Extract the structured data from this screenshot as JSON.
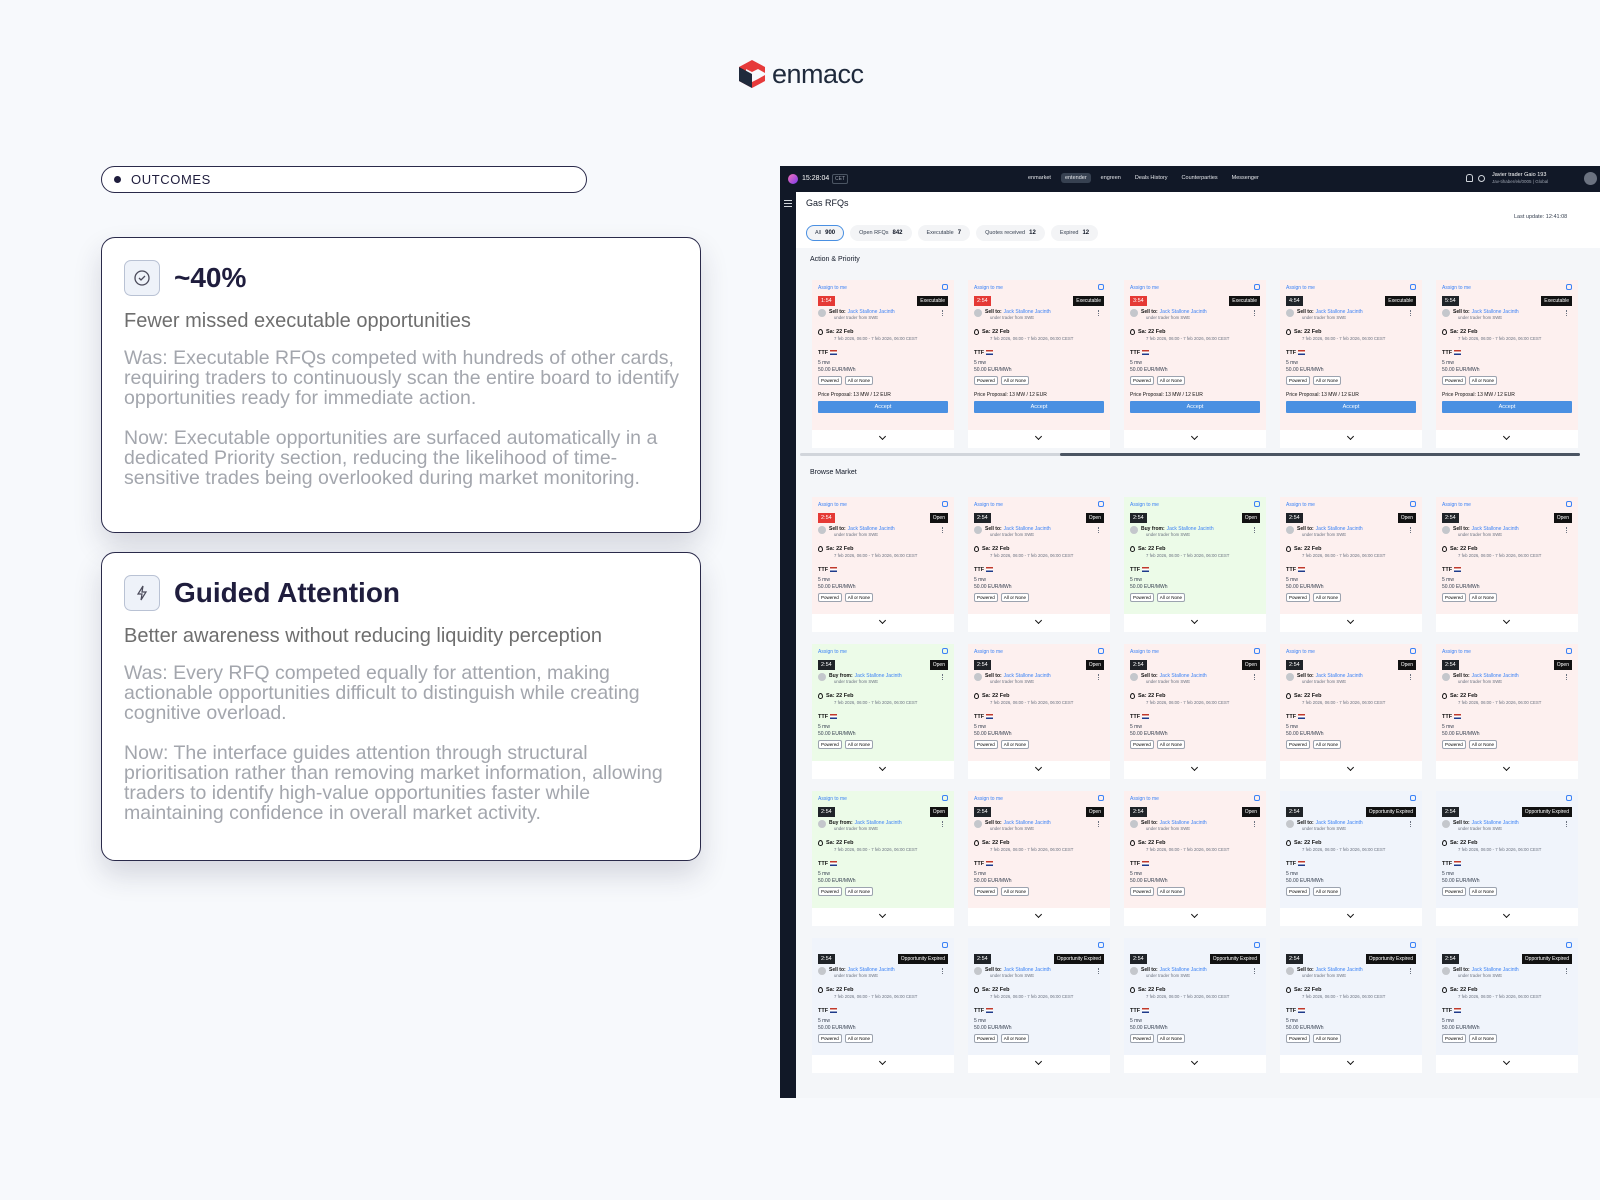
{
  "logo": "enmacc",
  "section_label": "OUTCOMES",
  "outcomes": [
    {
      "title": "~40%",
      "subtitle": "Fewer missed executable opportunities",
      "was": "Was: Executable RFQs competed with hundreds of other cards, requiring traders to continuously scan the entire board to identify opportunities ready for immediate action.",
      "now": "Now: Executable opportunities are surfaced automatically in a dedicated Priority section, reducing the likelihood of time-sensitive trades being overlooked during market monitoring."
    },
    {
      "title": "Guided Attention",
      "subtitle": "Better awareness without reducing liquidity perception",
      "was": "Was: Every RFQ competed equally for attention, making actionable opportunities difficult to distinguish while creating cognitive overload.",
      "now": "Now: The interface guides attention through structural prioritisation rather than removing market information, allowing traders to identify high-value opportunities faster while maintaining confidence in overall market activity."
    }
  ],
  "app": {
    "clock": "15:28:04",
    "tz": "CET",
    "nav": [
      "enmarket",
      "entender",
      "engreen",
      "Deals History",
      "Counterparties",
      "Messenger"
    ],
    "active_nav": 1,
    "user": "Javier trader Gaio 193",
    "user_sub": "Jav-tihaber/ek/0005 | Global",
    "page_title": "Gas RFQs",
    "last_update": "Last update: 12:41:08",
    "filters": [
      {
        "label": "All",
        "count": "900"
      },
      {
        "label": "Open RFQs",
        "count": "842"
      },
      {
        "label": "Executable",
        "count": "7"
      },
      {
        "label": "Quotes received",
        "count": "12"
      },
      {
        "label": "Expired",
        "count": "12"
      }
    ],
    "card_text": {
      "assign": "Assign to me",
      "name": "Jack Stallone Jacinth",
      "sub": "under trader from SWE",
      "date": "Sa: 22 Feb",
      "range": "7 feb 2026, 06:00 - 7 feb 2026, 06:00 CEST",
      "product": "TTF",
      "volume": "5 mw",
      "price": "50.00 EUR/MWh",
      "tags": [
        "Powered",
        "All or None"
      ]
    },
    "sections": [
      {
        "title": "Action & Priority",
        "proposal": "Price Proposal: 13 MW / 12 EUR",
        "accept": "Accept",
        "cards": [
          {
            "timer": "1:54",
            "status": "Executable",
            "side": "Sell to:",
            "tone": "sell",
            "urgent": true
          },
          {
            "timer": "2:54",
            "status": "Executable",
            "side": "Sell to:",
            "tone": "sell",
            "urgent": true
          },
          {
            "timer": "3:54",
            "status": "Executable",
            "side": "Sell to:",
            "tone": "sell",
            "urgent": true
          },
          {
            "timer": "4:54",
            "status": "Executable",
            "side": "Sell to:",
            "tone": "sell",
            "urgent": false
          },
          {
            "timer": "5:54",
            "status": "Executable",
            "side": "Sell to:",
            "tone": "sell",
            "urgent": false
          }
        ]
      },
      {
        "title": "Browse Market",
        "cards": [
          {
            "timer": "2:54",
            "status": "Open",
            "side": "Sell to:",
            "tone": "sell",
            "urgent": true
          },
          {
            "timer": "2:54",
            "status": "Open",
            "side": "Sell to:",
            "tone": "sell",
            "urgent": false
          },
          {
            "timer": "2:54",
            "status": "Open",
            "side": "Buy from:",
            "tone": "buy",
            "urgent": false
          },
          {
            "timer": "2:54",
            "status": "Open",
            "side": "Sell to:",
            "tone": "sell",
            "urgent": false
          },
          {
            "timer": "2:54",
            "status": "Open",
            "side": "Sell to:",
            "tone": "sell",
            "urgent": false
          },
          {
            "timer": "2:54",
            "status": "Open",
            "side": "Buy from:",
            "tone": "buy",
            "urgent": false
          },
          {
            "timer": "2:54",
            "status": "Open",
            "side": "Sell to:",
            "tone": "sell",
            "urgent": false
          },
          {
            "timer": "2:54",
            "status": "Open",
            "side": "Sell to:",
            "tone": "sell",
            "urgent": false
          },
          {
            "timer": "2:54",
            "status": "Open",
            "side": "Sell to:",
            "tone": "sell",
            "urgent": false
          },
          {
            "timer": "2:54",
            "status": "Open",
            "side": "Sell to:",
            "tone": "sell",
            "urgent": false
          },
          {
            "timer": "2:54",
            "status": "Open",
            "side": "Buy from:",
            "tone": "buy",
            "urgent": false
          },
          {
            "timer": "2:54",
            "status": "Open",
            "side": "Sell to:",
            "tone": "sell",
            "urgent": false
          },
          {
            "timer": "2:54",
            "status": "Open",
            "side": "Sell to:",
            "tone": "sell",
            "urgent": false
          },
          {
            "timer": "2:54",
            "status": "Opportunity Expired",
            "side": "Sell to:",
            "tone": "expired",
            "urgent": false
          },
          {
            "timer": "2:54",
            "status": "Opportunity Expired",
            "side": "Sell to:",
            "tone": "expired",
            "urgent": false
          },
          {
            "timer": "2:54",
            "status": "Opportunity Expired",
            "side": "Sell to:",
            "tone": "expired",
            "urgent": false
          },
          {
            "timer": "2:54",
            "status": "Opportunity Expired",
            "side": "Sell to:",
            "tone": "expired",
            "urgent": false
          },
          {
            "timer": "2:54",
            "status": "Opportunity Expired",
            "side": "Sell to:",
            "tone": "expired",
            "urgent": false
          },
          {
            "timer": "2:54",
            "status": "Opportunity Expired",
            "side": "Sell to:",
            "tone": "expired",
            "urgent": false
          },
          {
            "timer": "2:54",
            "status": "Opportunity Expired",
            "side": "Sell to:",
            "tone": "expired",
            "urgent": false
          }
        ]
      }
    ]
  }
}
